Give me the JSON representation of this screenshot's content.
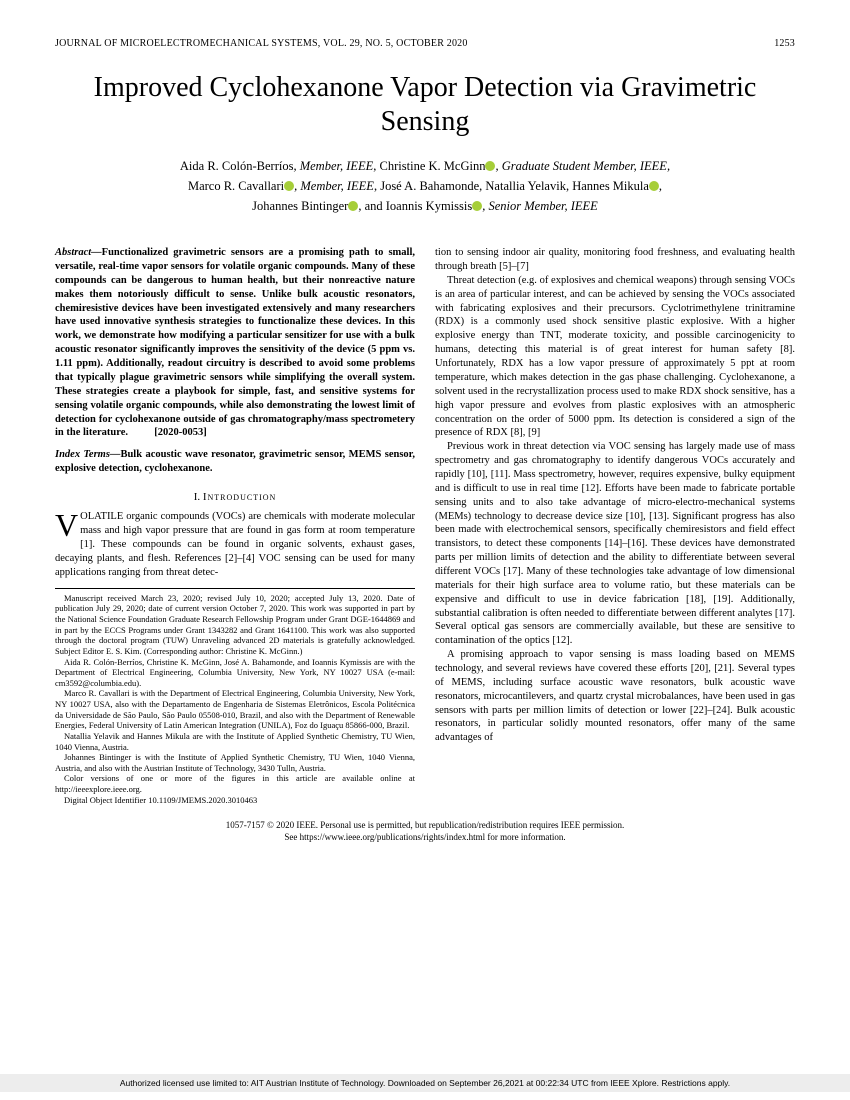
{
  "header": {
    "journal": "JOURNAL OF MICROELECTROMECHANICAL SYSTEMS, VOL. 29, NO. 5, OCTOBER 2020",
    "page_number": "1253"
  },
  "title": "Improved Cyclohexanone Vapor Detection via Gravimetric Sensing",
  "authors": {
    "line1_a": "Aida R. Colón-Berríos",
    "line1_role_a": ", Member, IEEE",
    "line1_b": ", Christine K. McGinn",
    "line1_role_b": ", Graduate Student Member, IEEE,",
    "line2_a": "Marco R. Cavallari",
    "line2_role_a": ", Member, IEEE",
    "line2_b": ", José A. Bahamonde, Natallia Yelavik, Hannes Mikula",
    "line3_a": "Johannes Bintinger",
    "line3_b": ", and Ioannis Kymissis",
    "line3_role_b": ", Senior Member, IEEE"
  },
  "abstract": {
    "label": "Abstract—",
    "text": "Functionalized gravimetric sensors are a promising path to small, versatile, real-time vapor sensors for volatile organic compounds. Many of these compounds can be dangerous to human health, but their nonreactive nature makes them notoriously difficult to sense. Unlike bulk acoustic resonators, chemiresistive devices have been investigated extensively and many researchers have used innovative synthesis strategies to functionalize these devices. In this work, we demonstrate how modifying a particular sensitizer for use with a bulk acoustic resonator significantly improves the sensitivity of the device (5 ppm vs. 1.11 ppm). Additionally, readout circuitry is described to avoid some problems that typically plague gravimetric sensors while simplifying the overall system. These strategies create a playbook for simple, fast, and sensitive systems for sensing volatile organic compounds, while also demonstrating the lowest limit of detection for cyclohexanone outside of gas chromatography/mass spectrometery in the literature.",
    "docnum": "[2020-0053]"
  },
  "index_terms": {
    "label": "Index Terms—",
    "text": "Bulk acoustic wave resonator, gravimetric sensor, MEMS sensor, explosive detection, cyclohexanone."
  },
  "section1": {
    "numeral": "I.",
    "title": "Introduction"
  },
  "intro": {
    "dropcap": "V",
    "first": "OLATILE organic compounds (VOCs) are chemicals with moderate molecular mass and high vapor pressure that are found in gas form at room temperature [1]. These compounds can be found in organic solvents, exhaust gases, decaying plants, and flesh. References [2]–[4] VOC sensing can be used for many applications ranging from threat detec-"
  },
  "footnotes": {
    "p1": "Manuscript received March 23, 2020; revised July 10, 2020; accepted July 13, 2020. Date of publication July 29, 2020; date of current version October 7, 2020. This work was supported in part by the National Science Foundation Graduate Research Fellowship Program under Grant DGE-1644869 and in part by the ECCS Programs under Grant 1343282 and Grant 1641100. This work was also supported through the doctoral program (TUW) Unraveling advanced 2D materials is gratefully acknowledged. Subject Editor E. S. Kim. (Corresponding author: Christine K. McGinn.)",
    "p2": "Aida R. Colón-Berríos, Christine K. McGinn, José A. Bahamonde, and Ioannis Kymissis are with the Department of Electrical Engineering, Columbia University, New York, NY 10027 USA (e-mail: cm3592@columbia.edu).",
    "p3": "Marco R. Cavallari is with the Department of Electrical Engineering, Columbia University, New York, NY 10027 USA, also with the Departamento de Engenharia de Sistemas Eletrônicos, Escola Politécnica da Universidade de São Paulo, São Paulo 05508-010, Brazil, and also with the Department of Renewable Energies, Federal University of Latin American Integration (UNILA), Foz do Iguaçu 85866-000, Brazil.",
    "p4": "Natallia Yelavik and Hannes Mikula are with the Institute of Applied Synthetic Chemistry, TU Wien, 1040 Vienna, Austria.",
    "p5": "Johannes Bintinger is with the Institute of Applied Synthetic Chemistry, TU Wien, 1040 Vienna, Austria, and also with the Austrian Institute of Technology, 3430 Tulln, Austria.",
    "p6": "Color versions of one or more of the figures in this article are available online at http://ieeexplore.ieee.org.",
    "p7": "Digital Object Identifier 10.1109/JMEMS.2020.3010463"
  },
  "col2": {
    "p1": "tion to sensing indoor air quality, monitoring food freshness, and evaluating health through breath [5]–[7]",
    "p2": "Threat detection (e.g. of explosives and chemical weapons) through sensing VOCs is an area of particular interest, and can be achieved by sensing the VOCs associated with fabricating explosives and their precursors. Cyclotrimethylene trinitramine (RDX) is a commonly used shock sensitive plastic explosive. With a higher explosive energy than TNT, moderate toxicity, and possible carcinogenicity to humans, detecting this material is of great interest for human safety [8]. Unfortunately, RDX has a low vapor pressure of approximately 5 ppt at room temperature, which makes detection in the gas phase challenging. Cyclohexanone, a solvent used in the recrystallization process used to make RDX shock sensitive, has a high vapor pressure and evolves from plastic explosives with an atmospheric concentration on the order of 5000 ppm. Its detection is considered a sign of the presence of RDX [8], [9]",
    "p3": "Previous work in threat detection via VOC sensing has largely made use of mass spectrometry and gas chromatography to identify dangerous VOCs accurately and rapidly [10], [11]. Mass spectrometry, however, requires expensive, bulky equipment and is difficult to use in real time [12]. Efforts have been made to fabricate portable sensing units and to also take advantage of micro-electro-mechanical systems (MEMs) technology to decrease device size [10], [13]. Significant progress has also been made with electrochemical sensors, specifically chemiresistors and field effect transistors, to detect these components [14]–[16]. These devices have demonstrated parts per million limits of detection and the ability to differentiate between several different VOCs [17]. Many of these technologies take advantage of low dimensional materials for their high surface area to volume ratio, but these materials can be expensive and difficult to use in device fabrication [18], [19]. Additionally, substantial calibration is often needed to differentiate between different analytes [17]. Several optical gas sensors are commercially available, but these are sensitive to contamination of the optics [12].",
    "p4": "A promising approach to vapor sensing is mass loading based on MEMS technology, and several reviews have covered these efforts [20], [21]. Several types of MEMS, including surface acoustic wave resonators, bulk acoustic wave resonators, microcantilevers, and quartz crystal microbalances, have been used in gas sensors with parts per million limits of detection or lower [22]–[24]. Bulk acoustic resonators, in particular solidly mounted resonators, offer many of the same advantages of"
  },
  "copyright": {
    "line1": "1057-7157 © 2020 IEEE. Personal use is permitted, but republication/redistribution requires IEEE permission.",
    "line2": "See https://www.ieee.org/publications/rights/index.html for more information."
  },
  "license_bar": "Authorized licensed use limited to: AIT Austrian Institute of Technology. Downloaded on September 26,2021 at 00:22:34 UTC from IEEE Xplore. Restrictions apply."
}
